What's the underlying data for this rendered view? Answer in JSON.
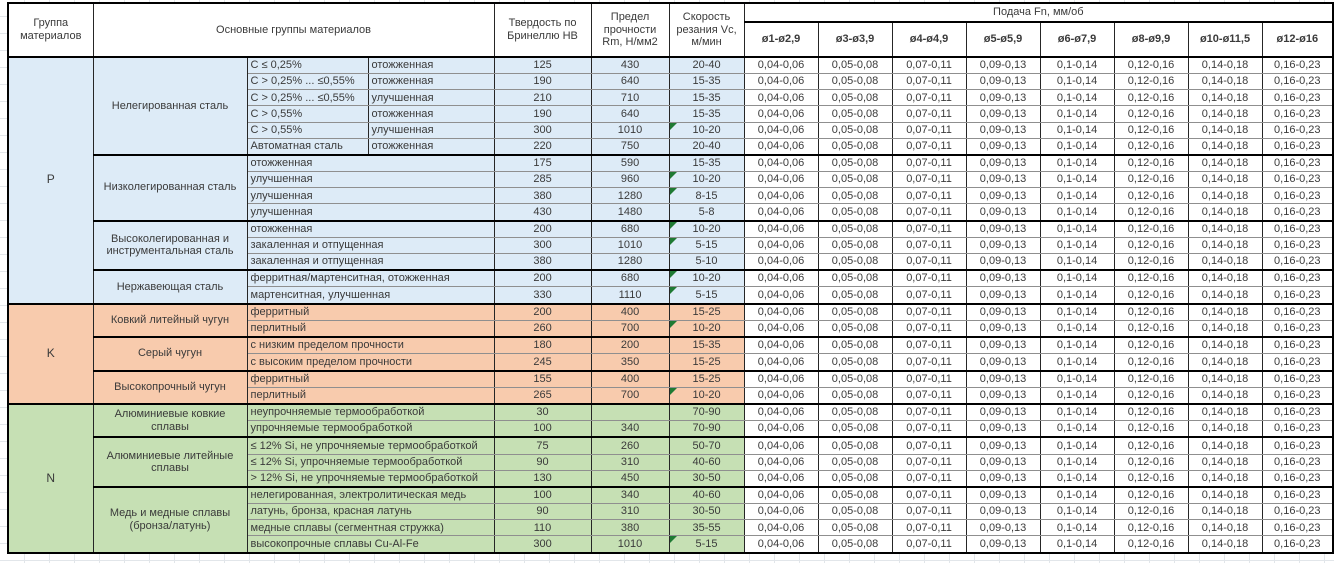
{
  "table": {
    "header": {
      "col_group": "Группа материалов",
      "col_main": "Основные группы материалов",
      "col_hb": "Твердость по Бринеллю HB",
      "col_rm": "Предел прочности Rm, Н/мм2",
      "col_vc": "Скорость резания Vc, м/мин",
      "col_feed": "Подача Fn, мм/об",
      "feed_cols": [
        "ø1-ø2,9",
        "ø3-ø3,9",
        "ø4-ø4,9",
        "ø5-ø5,9",
        "ø6-ø7,9",
        "ø8-ø9,9",
        "ø10-ø11,5",
        "ø12-ø16"
      ]
    },
    "feed_values": [
      "0,04-0,06",
      "0,05-0,08",
      "0,07-0,11",
      "0,09-0,13",
      "0,1-0,14",
      "0,12-0,16",
      "0,14-0,18",
      "0,16-0,23"
    ],
    "note_marker_color": "#1f7a33",
    "sections": [
      {
        "letter": "P",
        "color": "#DDEBF7",
        "groups": [
          {
            "name": "Нелегированная сталь",
            "rows": [
              {
                "detail": [
                  "C ≤ 0,25%",
                  "отожженная"
                ],
                "hb": "125",
                "rm": "430",
                "vc": "20-40",
                "note": false
              },
              {
                "detail": [
                  "C > 0,25% ... ≤0,55%",
                  "отожженная"
                ],
                "hb": "190",
                "rm": "640",
                "vc": "15-35",
                "note": false
              },
              {
                "detail": [
                  "C > 0,25% ... ≤0,55%",
                  "улучшенная"
                ],
                "hb": "210",
                "rm": "710",
                "vc": "15-35",
                "note": false
              },
              {
                "detail": [
                  "C > 0,55%",
                  "отожженная"
                ],
                "hb": "190",
                "rm": "640",
                "vc": "15-35",
                "note": false
              },
              {
                "detail": [
                  "C > 0,55%",
                  "улучшенная"
                ],
                "hb": "300",
                "rm": "1010",
                "vc": "10-20",
                "note": true
              },
              {
                "detail": [
                  "Автоматная сталь",
                  "отожженная"
                ],
                "hb": "220",
                "rm": "750",
                "vc": "20-40",
                "note": false
              }
            ]
          },
          {
            "name": "Низколегированная сталь",
            "rows": [
              {
                "detail": [
                  "отожженная"
                ],
                "hb": "175",
                "rm": "590",
                "vc": "15-35",
                "note": false
              },
              {
                "detail": [
                  "улучшенная"
                ],
                "hb": "285",
                "rm": "960",
                "vc": "10-20",
                "note": true
              },
              {
                "detail": [
                  "улучшенная"
                ],
                "hb": "380",
                "rm": "1280",
                "vc": "8-15",
                "note": true
              },
              {
                "detail": [
                  "улучшенная"
                ],
                "hb": "430",
                "rm": "1480",
                "vc": "5-8",
                "note": false
              }
            ]
          },
          {
            "name": "Высоколегированная и инструментальная сталь",
            "rows": [
              {
                "detail": [
                  "отожженная"
                ],
                "hb": "200",
                "rm": "680",
                "vc": "10-20",
                "note": true
              },
              {
                "detail": [
                  "закаленная и отпущенная"
                ],
                "hb": "300",
                "rm": "1010",
                "vc": "5-15",
                "note": true
              },
              {
                "detail": [
                  "закаленная и отпущенная"
                ],
                "hb": "380",
                "rm": "1280",
                "vc": "5-10",
                "note": false
              }
            ]
          },
          {
            "name": "Нержавеющая сталь",
            "rows": [
              {
                "detail": [
                  "ферритная/мартенситная, отожженная"
                ],
                "hb": "200",
                "rm": "680",
                "vc": "10-20",
                "note": true
              },
              {
                "detail": [
                  "мартенситная, улучшенная"
                ],
                "hb": "330",
                "rm": "1110",
                "vc": "5-15",
                "note": true
              }
            ]
          }
        ]
      },
      {
        "letter": "K",
        "color": "#F8CBAD",
        "groups": [
          {
            "name": "Ковкий литейный чугун",
            "rows": [
              {
                "detail": [
                  "ферритный"
                ],
                "hb": "200",
                "rm": "400",
                "vc": "15-25",
                "note": false
              },
              {
                "detail": [
                  "перлитный"
                ],
                "hb": "260",
                "rm": "700",
                "vc": "10-20",
                "note": true
              }
            ]
          },
          {
            "name": "Серый чугун",
            "rows": [
              {
                "detail": [
                  "с низким пределом прочности"
                ],
                "hb": "180",
                "rm": "200",
                "vc": "15-35",
                "note": false
              },
              {
                "detail": [
                  "с высоким пределом прочности"
                ],
                "hb": "245",
                "rm": "350",
                "vc": "15-25",
                "note": false
              }
            ]
          },
          {
            "name": "Высокопрочный чугун",
            "rows": [
              {
                "detail": [
                  "ферритный"
                ],
                "hb": "155",
                "rm": "400",
                "vc": "15-25",
                "note": false
              },
              {
                "detail": [
                  "перлитный"
                ],
                "hb": "265",
                "rm": "700",
                "vc": "10-20",
                "note": true
              }
            ]
          }
        ]
      },
      {
        "letter": "N",
        "color": "#C6E0B4",
        "groups": [
          {
            "name": "Алюминиевые ковкие сплавы",
            "rows": [
              {
                "detail": [
                  "неупрочняемые термообработкой"
                ],
                "hb": "30",
                "rm": "",
                "vc": "70-90",
                "note": false
              },
              {
                "detail": [
                  "упрочняемые термообработкой"
                ],
                "hb": "100",
                "rm": "340",
                "vc": "70-90",
                "note": false
              }
            ]
          },
          {
            "name": "Алюминиевые литейные сплавы",
            "rows": [
              {
                "detail": [
                  "≤ 12% Si, не упрочняемые термообработкой"
                ],
                "hb": "75",
                "rm": "260",
                "vc": "50-70",
                "note": false
              },
              {
                "detail": [
                  "≤ 12% Si, упрочняемые термообработкой"
                ],
                "hb": "90",
                "rm": "310",
                "vc": "40-60",
                "note": false
              },
              {
                "detail": [
                  "> 12% Si, не упрочняемые термообработкой"
                ],
                "hb": "130",
                "rm": "450",
                "vc": "30-50",
                "note": false
              }
            ]
          },
          {
            "name": "Медь и медные сплавы (бронза/латунь)",
            "rows": [
              {
                "detail": [
                  "нелегированная, электролитическая медь"
                ],
                "hb": "100",
                "rm": "340",
                "vc": "40-60",
                "note": false
              },
              {
                "detail": [
                  "латунь, бронза, красная латунь"
                ],
                "hb": "90",
                "rm": "310",
                "vc": "30-50",
                "note": false
              },
              {
                "detail": [
                  "медные сплавы (сегментная стружка)"
                ],
                "hb": "110",
                "rm": "380",
                "vc": "35-55",
                "note": false
              },
              {
                "detail": [
                  "высокопрочные сплавы Cu-Al-Fe"
                ],
                "hb": "300",
                "rm": "1010",
                "vc": "5-15",
                "note": true
              }
            ]
          }
        ]
      }
    ]
  }
}
